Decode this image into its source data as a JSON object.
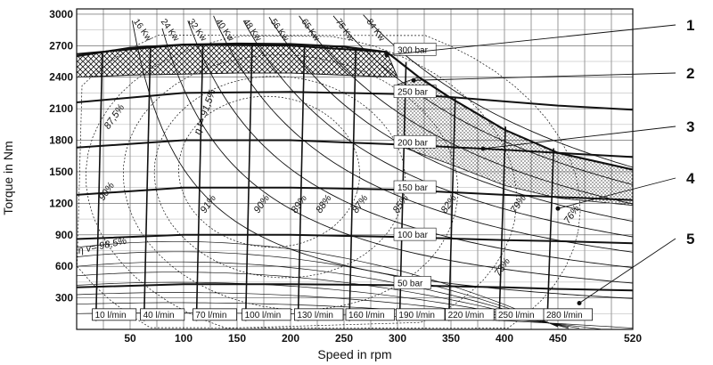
{
  "chart_data": {
    "type": "line",
    "xlabel": "Speed in rpm",
    "ylabel": "Torque in Nm",
    "xlim": [
      0,
      520
    ],
    "ylim": [
      0,
      3050
    ],
    "x_ticks": [
      50,
      100,
      150,
      200,
      250,
      300,
      350,
      400,
      450,
      520
    ],
    "y_ticks": [
      300,
      600,
      900,
      1200,
      1500,
      1800,
      2100,
      2400,
      2700,
      3000
    ],
    "grid": true,
    "max_torque_curve": [
      [
        0,
        2600
      ],
      [
        50,
        2680
      ],
      [
        100,
        2710
      ],
      [
        150,
        2720
      ],
      [
        200,
        2715
      ],
      [
        250,
        2690
      ],
      [
        290,
        2640
      ],
      [
        320,
        2400
      ],
      [
        350,
        2200
      ],
      [
        400,
        1900
      ],
      [
        450,
        1680
      ],
      [
        520,
        1520
      ]
    ],
    "pressure_lines": [
      {
        "label": "300 bar",
        "points": [
          [
            0,
            2620
          ],
          [
            100,
            2710
          ],
          [
            200,
            2700
          ],
          [
            290,
            2640
          ]
        ]
      },
      {
        "label": "250 bar",
        "points": [
          [
            0,
            2160
          ],
          [
            100,
            2250
          ],
          [
            200,
            2260
          ],
          [
            300,
            2240
          ],
          [
            350,
            2210
          ],
          [
            400,
            2170
          ],
          [
            450,
            2130
          ],
          [
            520,
            2090
          ]
        ]
      },
      {
        "label": "200 bar",
        "points": [
          [
            0,
            1730
          ],
          [
            100,
            1800
          ],
          [
            200,
            1800
          ],
          [
            300,
            1760
          ],
          [
            400,
            1710
          ],
          [
            450,
            1680
          ],
          [
            520,
            1640
          ]
        ]
      },
      {
        "label": "150 bar",
        "points": [
          [
            0,
            1280
          ],
          [
            100,
            1350
          ],
          [
            200,
            1350
          ],
          [
            300,
            1330
          ],
          [
            400,
            1280
          ],
          [
            450,
            1260
          ],
          [
            520,
            1230
          ]
        ]
      },
      {
        "label": "100 bar",
        "points": [
          [
            0,
            860
          ],
          [
            100,
            900
          ],
          [
            200,
            900
          ],
          [
            300,
            880
          ],
          [
            400,
            850
          ],
          [
            450,
            840
          ],
          [
            520,
            820
          ]
        ]
      },
      {
        "label": "50 bar",
        "points": [
          [
            0,
            400
          ],
          [
            100,
            430
          ],
          [
            200,
            430
          ],
          [
            300,
            420
          ],
          [
            400,
            400
          ],
          [
            450,
            385
          ],
          [
            520,
            370
          ]
        ]
      }
    ],
    "flow_lines": [
      {
        "label": "10 l/min",
        "x": 18
      },
      {
        "label": "40 l/min",
        "x": 63
      },
      {
        "label": "70 l/min",
        "x": 112
      },
      {
        "label": "100 l/min",
        "x": 158
      },
      {
        "label": "130 l/min",
        "x": 207
      },
      {
        "label": "160 l/min",
        "x": 255
      },
      {
        "label": "190 l/min",
        "x": 302
      },
      {
        "label": "220 l/min",
        "x": 348
      },
      {
        "label": "250 l/min",
        "x": 395
      },
      {
        "label": "280 l/min",
        "x": 440
      }
    ],
    "power_labels": [
      "16 Kw",
      "24 Kw",
      "32 Kw",
      "40 Kw",
      "48 Kw",
      "56 Kw",
      "65 Kw",
      "75 Kw",
      "84 Kw"
    ],
    "power_values_kw": [
      16,
      24,
      32,
      40,
      48,
      56,
      65,
      75,
      84
    ],
    "efficiency_labels": [
      "87,5%",
      "90%",
      "91%",
      "90%",
      "89%",
      "88%",
      "87%",
      "85%",
      "82%",
      "79%",
      "76%",
      "73%"
    ],
    "eta_t_label": "η t= 91,5%",
    "eta_v_label": "η v= 98,5%",
    "callouts": [
      "1",
      "2",
      "3",
      "4",
      "5"
    ]
  }
}
